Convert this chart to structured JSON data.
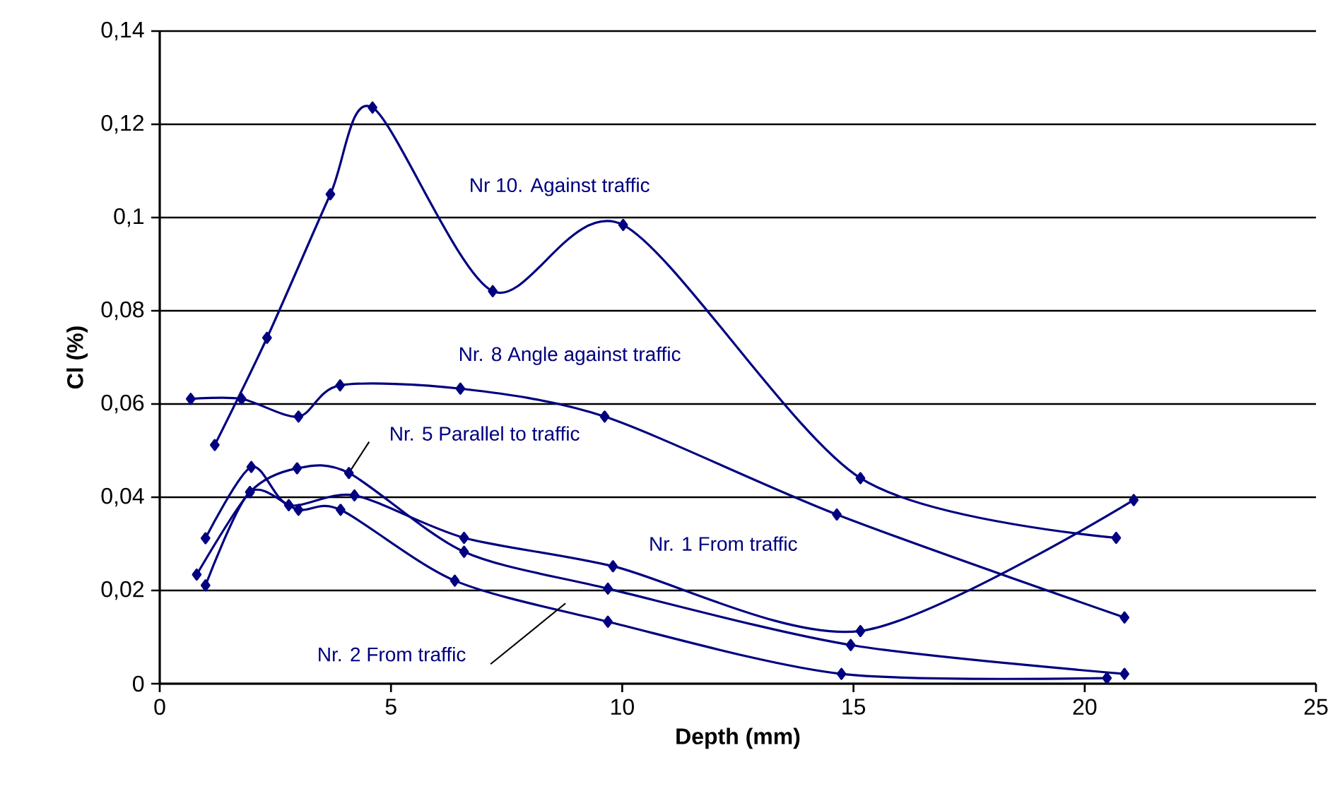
{
  "chart_data": {
    "type": "line",
    "xlabel": "Depth (mm)",
    "ylabel": "Cl (%)",
    "xlim": [
      0,
      25
    ],
    "ylim": [
      0,
      0.14
    ],
    "xticks": [
      0,
      5,
      10,
      15,
      20,
      25
    ],
    "yticks": [
      {
        "value": 0,
        "label": "0"
      },
      {
        "value": 0.02,
        "label": "0,02"
      },
      {
        "value": 0.04,
        "label": "0,04"
      },
      {
        "value": 0.06,
        "label": "0,06"
      },
      {
        "value": 0.08,
        "label": "0,08"
      },
      {
        "value": 0.1,
        "label": "0,1"
      },
      {
        "value": 0.12,
        "label": "0,12"
      },
      {
        "value": 0.14,
        "label": "0,14"
      }
    ],
    "grid": "y",
    "marker": "diamond",
    "line_style": "solid",
    "series": [
      {
        "name": "Nr 10. Against traffic",
        "color": "#000080",
        "x": [
          1.19,
          2.32,
          3.69,
          4.6,
          7.2,
          10.02,
          15.15,
          20.68
        ],
        "values": [
          0.0512,
          0.0742,
          0.105,
          0.1236,
          0.0842,
          0.0984,
          0.0441,
          0.0313
        ]
      },
      {
        "name": "Nr. 8 Angle against traffic",
        "color": "#000080",
        "x": [
          0.67,
          1.77,
          3.0,
          3.9,
          6.5,
          9.62,
          14.64,
          20.86
        ],
        "values": [
          0.0611,
          0.0611,
          0.0573,
          0.064,
          0.0633,
          0.0573,
          0.0363,
          0.0142
        ]
      },
      {
        "name": "Nr. 5 Parallel to traffic",
        "color": "#000080",
        "x": [
          0.8,
          1.95,
          2.97,
          4.09,
          6.58,
          9.69,
          14.94,
          20.86
        ],
        "values": [
          0.0234,
          0.0411,
          0.0462,
          0.0452,
          0.0283,
          0.0204,
          0.0083,
          0.0021
        ]
      },
      {
        "name": "Nr. 1 From traffic",
        "color": "#000080",
        "x": [
          0.99,
          1.98,
          2.79,
          4.21,
          6.58,
          9.8,
          15.15,
          21.06
        ],
        "values": [
          0.0312,
          0.0465,
          0.0383,
          0.0404,
          0.0313,
          0.0252,
          0.0113,
          0.0394
        ]
      },
      {
        "name": "Nr. 2 From traffic",
        "color": "#000080",
        "x": [
          0.99,
          1.95,
          3.0,
          3.91,
          6.38,
          9.69,
          14.74,
          20.48
        ],
        "values": [
          0.0211,
          0.0411,
          0.0373,
          0.0373,
          0.0221,
          0.0133,
          0.0021,
          0.0012
        ]
      }
    ]
  }
}
